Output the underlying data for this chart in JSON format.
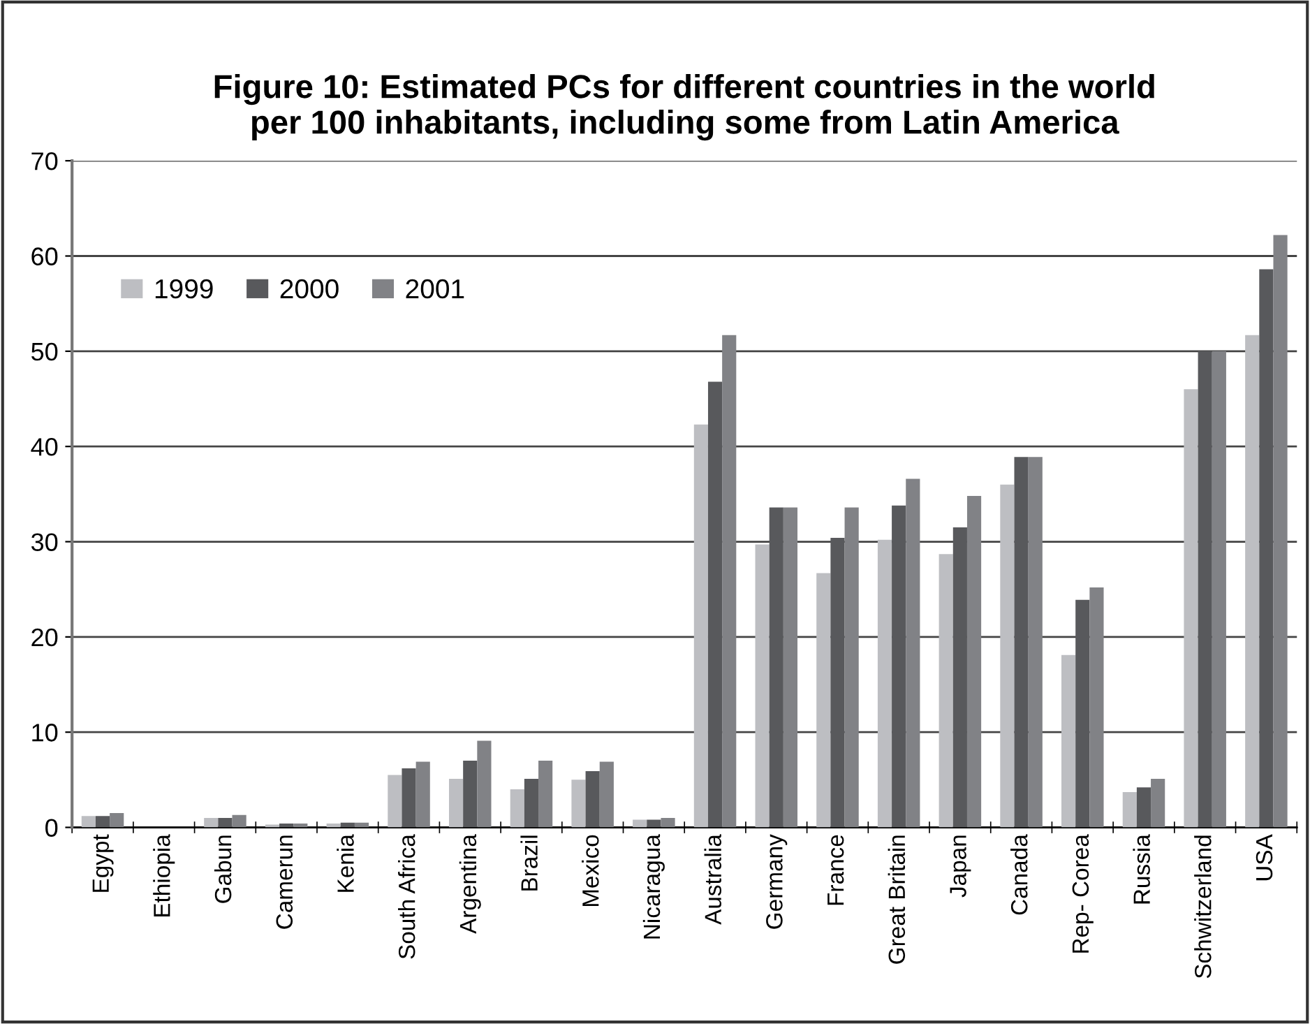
{
  "chart_data": {
    "type": "bar",
    "title": "Figure 10: Estimated PCs for different countries in the world\nper 100 inhabitants, including some from Latin America",
    "categories": [
      "Egypt",
      "Ethiopia",
      "Gabun",
      "Camerun",
      "Kenia",
      "South Africa",
      "Argentina",
      "Brazil",
      "Mexico",
      "Nicaragua",
      "Australia",
      "Germany",
      "France",
      "Great Britain",
      "Japan",
      "Canada",
      "Rep- Corea",
      "Russia",
      "Schwitzerland",
      "USA"
    ],
    "series": [
      {
        "name": "1999",
        "color": "#bdbec2",
        "values": [
          1.2,
          null,
          1.0,
          0.3,
          0.4,
          5.5,
          5.1,
          4.0,
          5.0,
          0.8,
          42.3,
          29.7,
          26.7,
          30.2,
          28.7,
          36.0,
          18.1,
          3.7,
          46.0,
          51.7
        ]
      },
      {
        "name": "2000",
        "color": "#58595c",
        "values": [
          1.2,
          null,
          1.0,
          0.4,
          0.5,
          6.2,
          7.0,
          5.1,
          5.9,
          0.8,
          46.8,
          33.6,
          30.4,
          33.8,
          31.5,
          38.9,
          23.9,
          4.2,
          50.0,
          58.6
        ]
      },
      {
        "name": "2001",
        "color": "#818286",
        "values": [
          1.5,
          null,
          1.3,
          0.4,
          0.5,
          6.9,
          9.1,
          7.0,
          6.9,
          1.0,
          51.7,
          33.6,
          33.6,
          36.6,
          34.8,
          38.9,
          25.2,
          5.1,
          50.0,
          62.2
        ]
      }
    ],
    "ylim": [
      0,
      70
    ],
    "yticks": [
      0,
      10,
      20,
      30,
      40,
      50,
      60,
      70
    ],
    "grid": "y",
    "legend": "top left"
  }
}
